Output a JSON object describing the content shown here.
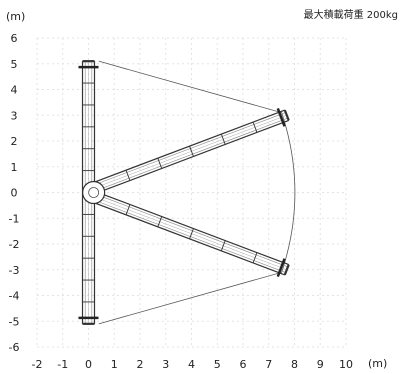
{
  "header": {
    "y_unit": "(m)",
    "x_unit": "(m)",
    "load_label": "最大積載荷重",
    "load_value": "200kg"
  },
  "chart_data": {
    "type": "diagram",
    "x_ticks": [
      -2,
      -1,
      0,
      1,
      2,
      3,
      4,
      5,
      6,
      7,
      8,
      9,
      10
    ],
    "y_ticks": [
      6,
      5,
      4,
      3,
      2,
      1,
      0,
      -1,
      -2,
      -3,
      -4,
      -5,
      -6
    ],
    "xlim": [
      -2,
      10
    ],
    "ylim": [
      -6,
      6
    ],
    "grid": true,
    "vertical_boom": {
      "x": 0,
      "y_from": -5.1,
      "y_to": 5.1
    },
    "diagonal_booms": [
      {
        "from": [
          0.3,
          0.2
        ],
        "to": [
          7.7,
          3.0
        ]
      },
      {
        "from": [
          0.3,
          -0.2
        ],
        "to": [
          7.7,
          -3.0
        ]
      }
    ],
    "envelope": [
      [
        0.4,
        5.1
      ],
      [
        7.5,
        3.1
      ],
      [
        8.3,
        0
      ],
      [
        7.5,
        -3.1
      ],
      [
        0.4,
        -5.1
      ]
    ]
  }
}
